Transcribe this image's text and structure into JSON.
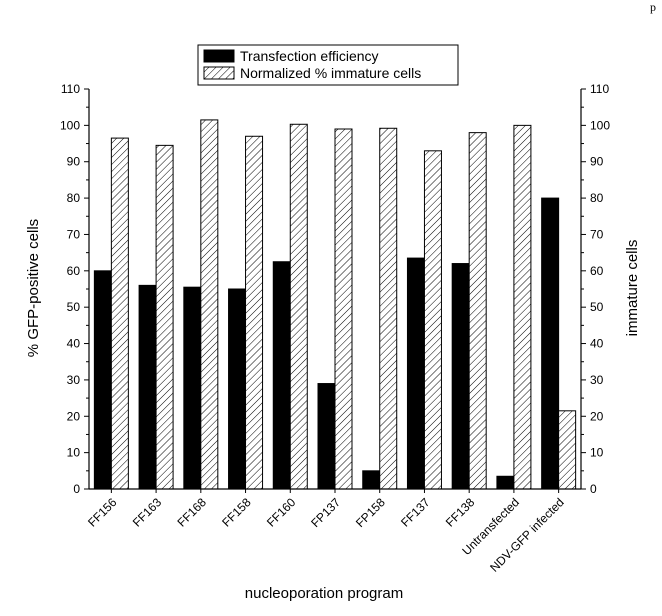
{
  "corner_text": "p",
  "chart_data": {
    "type": "bar",
    "categories": [
      "FF156",
      "FF163",
      "FF168",
      "FF158",
      "FF160",
      "FP137",
      "FP158",
      "FF137",
      "FF138",
      "Untransfected",
      "NDV-GFP infected"
    ],
    "series": [
      {
        "name": "Transfection efficiency",
        "values": [
          60,
          56,
          55.5,
          55,
          62.5,
          29,
          5,
          63.5,
          62,
          3.5,
          80
        ],
        "color": "#000000",
        "pattern": "solid"
      },
      {
        "name": "Normalized % immature cells",
        "values": [
          96.5,
          94.5,
          101.5,
          97,
          100.3,
          99,
          99.2,
          93,
          98,
          100,
          21.5
        ],
        "color": "#ffffff",
        "pattern": "hatched"
      }
    ],
    "xlabel": "nucleoporation program",
    "ylabel": "% GFP-positive cells",
    "y2label": "immature cells",
    "ylim": [
      0,
      110
    ],
    "y2lim": [
      0,
      110
    ],
    "yticks": [
      0,
      10,
      20,
      30,
      40,
      50,
      60,
      70,
      80,
      90,
      100,
      110
    ],
    "grid": false,
    "legend": "top-center"
  }
}
